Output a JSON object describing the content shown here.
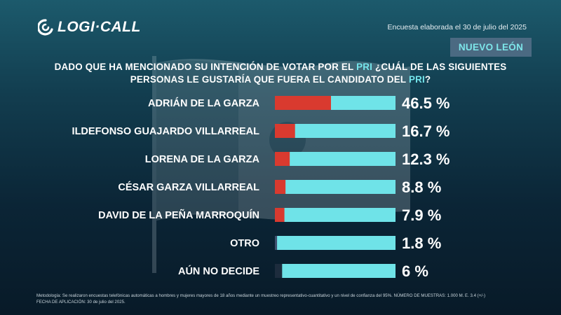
{
  "header": {
    "logo_text": "LOGI·CALL",
    "survey_date": "Encuesta elaborada el 30 de julio del 2025",
    "state_badge": "NUEVO LEÓN"
  },
  "question": {
    "line1_a": "DADO QUE HA MENCIONADO SU INTENCIÓN DE VOTAR POR EL ",
    "line1_hl": "PRI",
    "line1_b": " ¿CUÁL DE LAS SIGUIENTES",
    "line2_a": "PERSONAS LE GUSTARÍA QUE FUERA EL CANDIDATO DEL ",
    "line2_hl": "PRI",
    "line2_b": "?"
  },
  "chart_data": {
    "type": "bar",
    "orientation": "horizontal",
    "title": "DADO QUE HA MENCIONADO SU INTENCIÓN DE VOTAR POR EL PRI ¿CUÁL DE LAS SIGUIENTES PERSONAS LE GUSTARÍA QUE FUERA EL CANDIDATO DEL PRI?",
    "categories": [
      "ADRIÁN DE LA GARZA",
      "ILDEFONSO GUAJARDO VILLARREAL",
      "LORENA DE LA GARZA",
      "CÉSAR GARZA VILLARREAL",
      "DAVID DE LA PEÑA MARROQUÍN",
      "OTRO",
      "AÚN NO DECIDE"
    ],
    "values": [
      46.5,
      16.7,
      12.3,
      8.8,
      7.9,
      1.8,
      6
    ],
    "value_labels": [
      "46.5 %",
      "16.7 %",
      "12.3 %",
      "8.8 %",
      "7.9 %",
      "1.8 %",
      "6 %"
    ],
    "fill_colors": [
      "#d93a2f",
      "#d93a2f",
      "#d93a2f",
      "#d93a2f",
      "#d93a2f",
      "#3f4f6d",
      "#1d2c3d"
    ],
    "track_color": "#6fe3e8",
    "xlim": [
      0,
      100
    ]
  },
  "footnote": {
    "line1": "Metodología: Se realizaron encuestas telefónicas automáticas a hombres y mujeres mayores de 18 años mediante un muestreo representativo-cuantitativo y un nivel de confianza del 95%. NÚMERO DE MUESTRAS: 1.000 M. E. 3.4 (+/-)",
    "line2": "FECHA DE APLICACIÓN: 30 de julio del 2025."
  }
}
